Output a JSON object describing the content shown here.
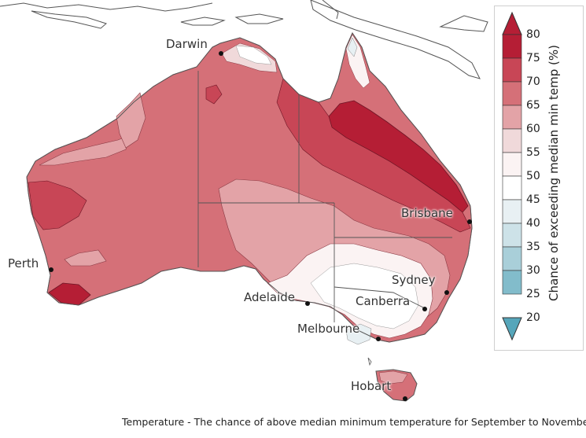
{
  "legend": {
    "title": "Chance of exceeding median min temp (%)",
    "ticks": [
      "80",
      "75",
      "70",
      "65",
      "60",
      "55",
      "50",
      "45",
      "40",
      "35",
      "30",
      "25",
      "20"
    ],
    "colors": {
      "above_75": "#b51e35",
      "70_75": "#c84656",
      "65_70": "#d57078",
      "60_65": "#e3a3a7",
      "55_60": "#f0d9da",
      "50_55": "#fbf3f3",
      "45_50": "#ffffff",
      "40_45": "#e8f0f3",
      "35_40": "#cde2e8",
      "30_35": "#a9cfd9",
      "25_30": "#82bccb",
      "below_25": "#56a6ba"
    }
  },
  "cities": {
    "darwin": "Darwin",
    "brisbane": "Brisbane",
    "perth": "Perth",
    "sydney": "Sydney",
    "adelaide": "Adelaide",
    "canberra": "Canberra",
    "melbourne": "Melbourne",
    "hobart": "Hobart"
  },
  "caption": "Temperature - The chance of above median minimum temperature for September to November"
}
